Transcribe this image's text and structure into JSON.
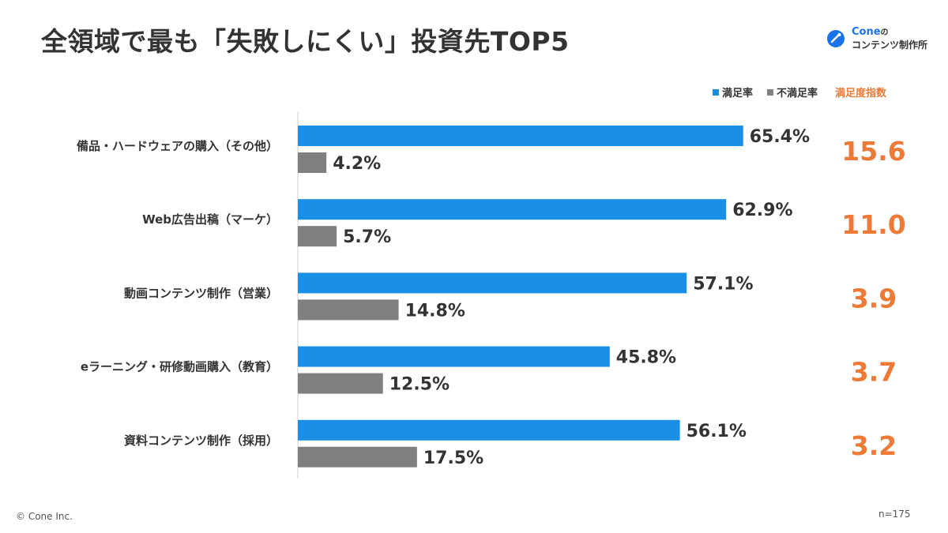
{
  "title": "全領域で最も「失敗しにくい」投資先TOP5",
  "logo": {
    "brand": "Cone",
    "suffix": "の",
    "line2": "コンテンツ制作所",
    "accent_color": "#1a73e8"
  },
  "legend": {
    "satisfied": "満足率",
    "unsatisfied": "不満足率",
    "index_header": "満足度指数"
  },
  "colors": {
    "satisfied": "#1a8fe6",
    "unsatisfied": "#808080",
    "index": "#ee7a37"
  },
  "chart_data": {
    "type": "bar",
    "orientation": "horizontal",
    "categories": [
      "備品・ハードウェアの購入（その他）",
      "Web広告出稿（マーケ）",
      "動画コンテンツ制作（営業）",
      "eラーニング・研修動画購入（教育）",
      "資料コンテンツ制作（採用）"
    ],
    "series": [
      {
        "name": "満足率",
        "values": [
          65.4,
          62.9,
          57.1,
          45.8,
          56.1
        ]
      },
      {
        "name": "不満足率",
        "values": [
          4.2,
          5.7,
          14.8,
          12.5,
          17.5
        ]
      }
    ],
    "value_labels": {
      "satisfied": [
        "65.4%",
        "62.9%",
        "57.1%",
        "45.8%",
        "56.1%"
      ],
      "unsatisfied": [
        "4.2%",
        "5.7%",
        "14.8%",
        "12.5%",
        "17.5%"
      ]
    },
    "index_values": [
      "15.6",
      "11.0",
      "3.9",
      "3.7",
      "3.2"
    ],
    "xlim": [
      0,
      100
    ],
    "grid": false,
    "legend_position": "top-right"
  },
  "footer": {
    "copyright": "© Cone Inc.",
    "n": "n=175"
  }
}
